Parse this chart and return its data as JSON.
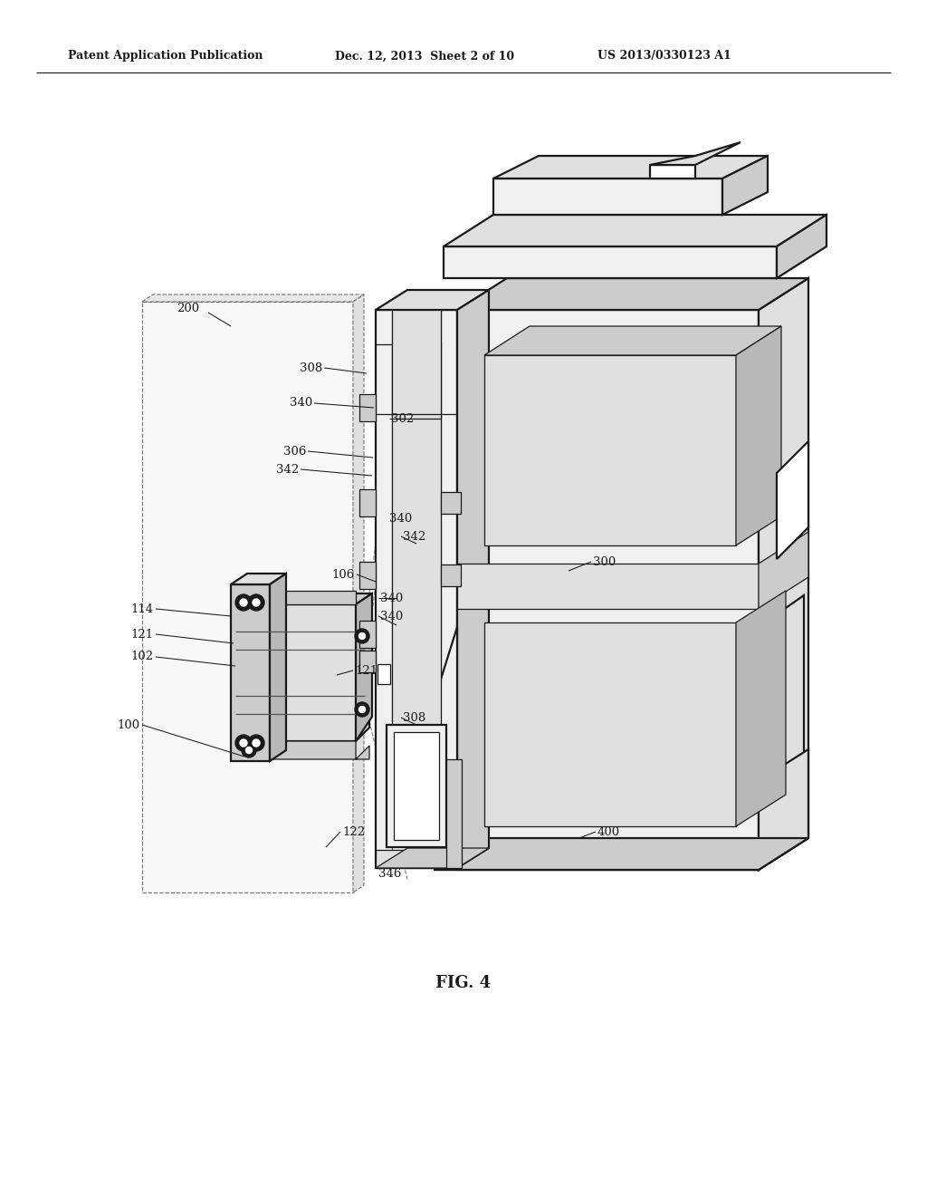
{
  "bg_color": "#ffffff",
  "header_left": "Patent Application Publication",
  "header_mid": "Dec. 12, 2013  Sheet 2 of 10",
  "header_right": "US 2013/0330123 A1",
  "fig_label": "FIG. 4",
  "line_color": "#1a1a1a",
  "lw_main": 1.6,
  "lw_thin": 0.9,
  "lw_dash": 0.85,
  "fill_white": "#ffffff",
  "fill_light": "#f0f0f0",
  "fill_mid": "#e0e0e0",
  "fill_dark": "#cccccc",
  "fill_darker": "#b8b8b8",
  "fill_darkest": "#a8a8a8"
}
